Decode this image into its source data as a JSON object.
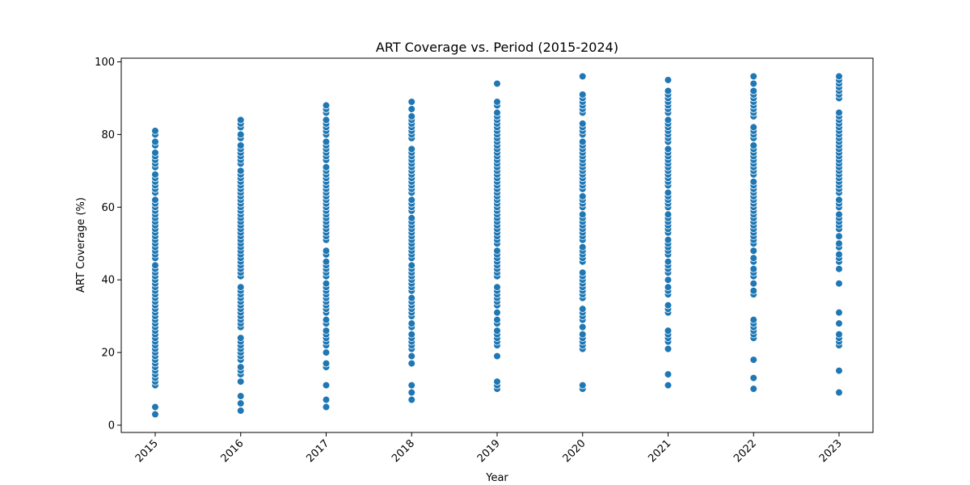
{
  "chart_data": {
    "type": "scatter",
    "title": "ART Coverage vs. Period (2015-2024)",
    "xlabel": "Year",
    "ylabel": "ART Coverage (%)",
    "categories": [
      "2015",
      "2016",
      "2017",
      "2018",
      "2019",
      "2020",
      "2021",
      "2022",
      "2023"
    ],
    "yticks": [
      0,
      20,
      40,
      60,
      80,
      100
    ],
    "ylim": [
      -2,
      101
    ],
    "grid": false,
    "marker_color": "#1f77b4",
    "series": [
      {
        "category": "2015",
        "values": [
          3,
          5,
          11,
          12,
          13,
          14,
          15,
          16,
          17,
          18,
          19,
          20,
          21,
          22,
          23,
          24,
          25,
          26,
          27,
          28,
          29,
          30,
          31,
          32,
          33,
          34,
          35,
          36,
          37,
          38,
          39,
          40,
          41,
          42,
          43,
          44,
          46,
          47,
          48,
          49,
          50,
          51,
          52,
          53,
          54,
          55,
          56,
          57,
          58,
          59,
          60,
          61,
          62,
          64,
          65,
          66,
          67,
          68,
          69,
          71,
          72,
          73,
          74,
          75,
          77,
          78,
          80,
          81
        ]
      },
      {
        "category": "2016",
        "values": [
          4,
          6,
          8,
          12,
          14,
          15,
          16,
          18,
          19,
          20,
          21,
          22,
          23,
          24,
          27,
          28,
          29,
          30,
          31,
          32,
          33,
          34,
          35,
          36,
          37,
          38,
          41,
          42,
          43,
          44,
          45,
          46,
          47,
          48,
          49,
          50,
          51,
          52,
          53,
          54,
          55,
          56,
          57,
          58,
          59,
          60,
          61,
          62,
          63,
          64,
          65,
          66,
          67,
          68,
          69,
          70,
          72,
          73,
          74,
          75,
          76,
          77,
          79,
          80,
          82,
          83,
          84
        ]
      },
      {
        "category": "2017",
        "values": [
          5,
          7,
          11,
          16,
          17,
          20,
          22,
          23,
          24,
          25,
          26,
          28,
          29,
          31,
          32,
          33,
          34,
          35,
          36,
          37,
          38,
          39,
          41,
          42,
          43,
          44,
          45,
          47,
          48,
          51,
          52,
          53,
          54,
          55,
          56,
          57,
          58,
          59,
          60,
          61,
          62,
          63,
          64,
          65,
          66,
          67,
          68,
          69,
          70,
          71,
          73,
          74,
          75,
          76,
          77,
          78,
          80,
          81,
          82,
          83,
          84,
          86,
          87,
          88
        ]
      },
      {
        "category": "2018",
        "values": [
          7,
          9,
          11,
          17,
          19,
          21,
          22,
          23,
          24,
          25,
          27,
          28,
          30,
          31,
          32,
          33,
          34,
          35,
          37,
          38,
          39,
          40,
          41,
          42,
          43,
          44,
          46,
          47,
          48,
          49,
          50,
          51,
          52,
          53,
          54,
          55,
          56,
          57,
          59,
          60,
          61,
          62,
          64,
          65,
          66,
          67,
          68,
          69,
          70,
          71,
          72,
          73,
          74,
          75,
          76,
          79,
          80,
          81,
          82,
          83,
          84,
          85,
          87,
          89
        ]
      },
      {
        "category": "2019",
        "values": [
          10,
          11,
          12,
          19,
          22,
          23,
          24,
          25,
          26,
          28,
          29,
          31,
          33,
          34,
          35,
          36,
          37,
          38,
          41,
          42,
          43,
          44,
          45,
          46,
          47,
          48,
          50,
          51,
          52,
          53,
          54,
          55,
          56,
          57,
          58,
          59,
          60,
          61,
          62,
          63,
          64,
          65,
          66,
          67,
          68,
          69,
          70,
          71,
          72,
          73,
          74,
          75,
          76,
          77,
          78,
          79,
          80,
          81,
          82,
          83,
          84,
          85,
          86,
          88,
          89,
          94
        ]
      },
      {
        "category": "2020",
        "values": [
          10,
          11,
          21,
          22,
          23,
          24,
          25,
          27,
          29,
          30,
          31,
          32,
          35,
          36,
          37,
          38,
          39,
          40,
          41,
          42,
          45,
          46,
          47,
          48,
          49,
          51,
          52,
          53,
          54,
          55,
          56,
          57,
          58,
          60,
          61,
          62,
          63,
          65,
          66,
          67,
          68,
          69,
          70,
          71,
          72,
          73,
          74,
          75,
          76,
          77,
          78,
          80,
          81,
          82,
          83,
          86,
          87,
          88,
          89,
          90,
          91,
          96
        ]
      },
      {
        "category": "2021",
        "values": [
          11,
          14,
          21,
          23,
          24,
          25,
          26,
          31,
          32,
          33,
          36,
          37,
          38,
          40,
          42,
          43,
          44,
          45,
          47,
          48,
          49,
          50,
          51,
          53,
          54,
          55,
          56,
          57,
          58,
          60,
          61,
          62,
          63,
          64,
          66,
          67,
          68,
          69,
          70,
          71,
          72,
          73,
          74,
          75,
          76,
          78,
          79,
          80,
          81,
          82,
          83,
          84,
          86,
          87,
          88,
          89,
          90,
          91,
          92,
          95
        ]
      },
      {
        "category": "2022",
        "values": [
          10,
          13,
          18,
          24,
          25,
          26,
          27,
          28,
          29,
          36,
          37,
          39,
          41,
          42,
          43,
          45,
          46,
          48,
          50,
          51,
          52,
          53,
          54,
          55,
          56,
          57,
          58,
          59,
          60,
          61,
          62,
          63,
          64,
          65,
          66,
          67,
          69,
          70,
          71,
          72,
          73,
          74,
          75,
          76,
          77,
          79,
          80,
          81,
          82,
          85,
          86,
          87,
          88,
          89,
          90,
          91,
          92,
          94,
          96
        ]
      },
      {
        "category": "2023",
        "values": [
          9,
          15,
          22,
          23,
          24,
          25,
          28,
          31,
          39,
          43,
          45,
          46,
          47,
          49,
          50,
          52,
          54,
          55,
          56,
          57,
          58,
          60,
          61,
          62,
          64,
          65,
          66,
          67,
          68,
          69,
          70,
          71,
          72,
          73,
          74,
          75,
          76,
          77,
          78,
          79,
          80,
          81,
          82,
          83,
          84,
          85,
          86,
          90,
          91,
          92,
          93,
          94,
          95,
          96
        ]
      }
    ]
  }
}
